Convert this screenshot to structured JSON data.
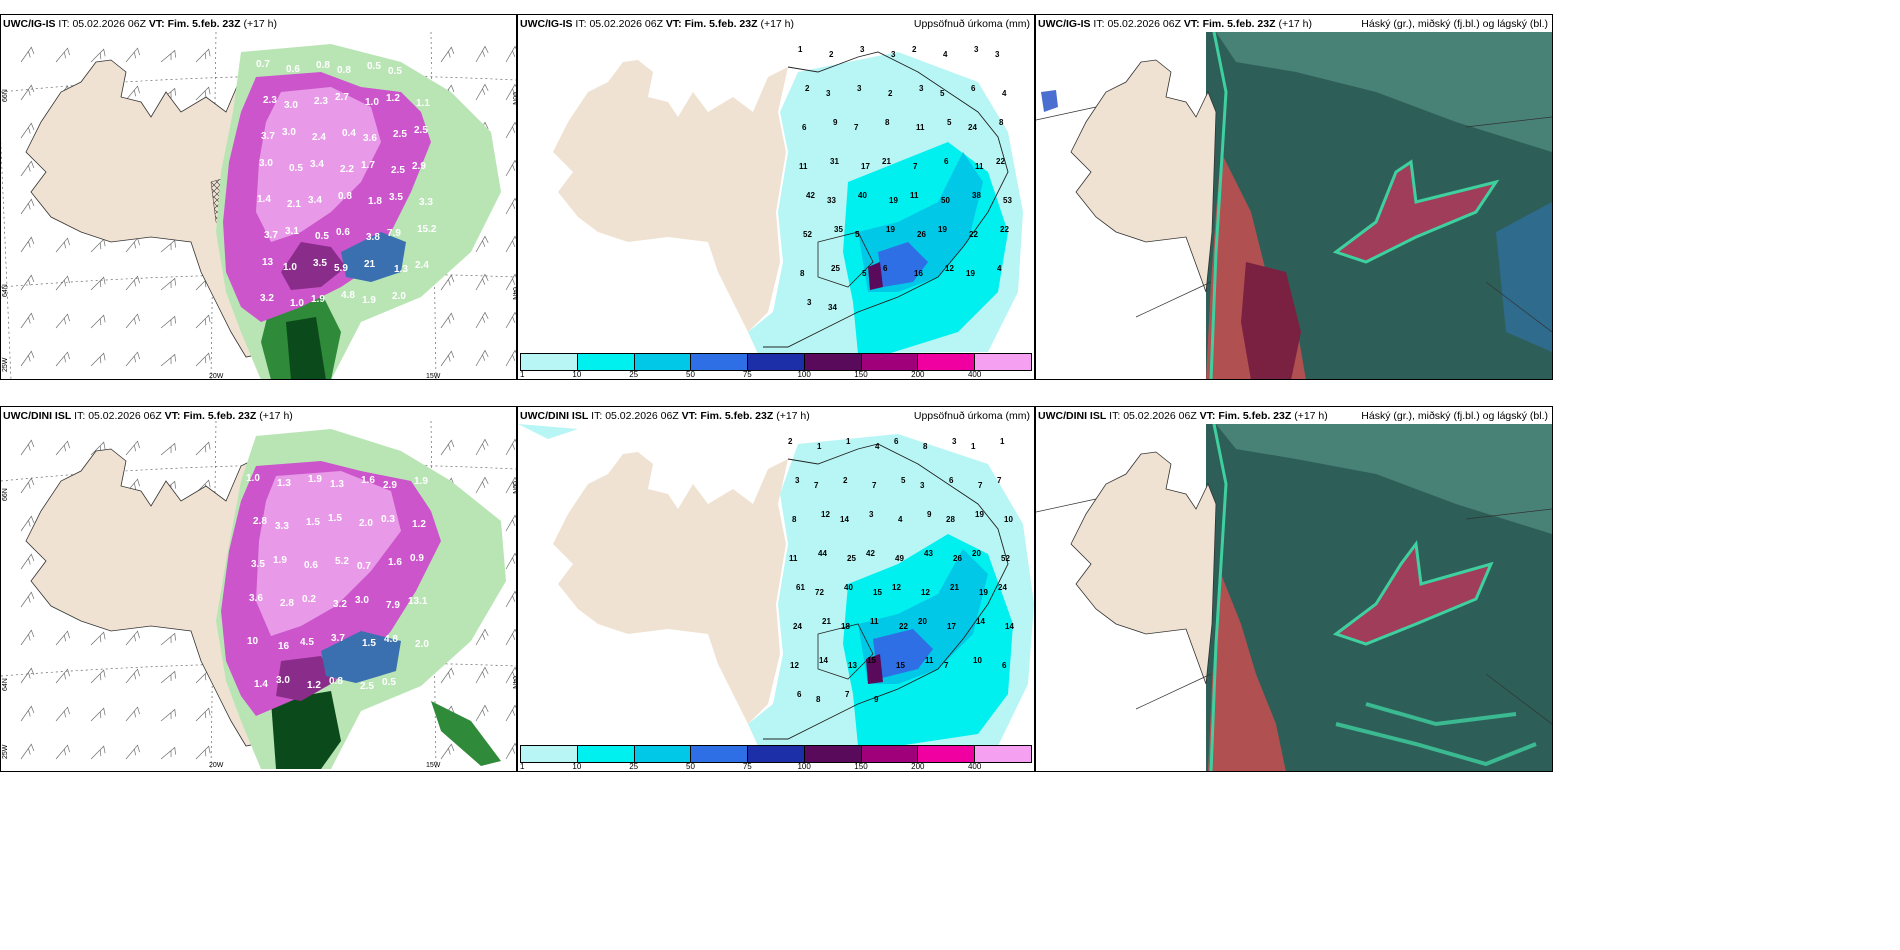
{
  "panels": {
    "p1": {
      "model": "UWC/IG-IS",
      "it_label": "IT:",
      "it_value": "05.02.2026 06Z",
      "vt_label": "VT:",
      "vt_value": "Fim. 5.feb. 23Z",
      "offset": "(+17 h)"
    },
    "p2": {
      "model": "UWC/IG-IS",
      "it_label": "IT:",
      "it_value": "05.02.2026 06Z",
      "vt_label": "VT:",
      "vt_value": "Fim. 5.feb. 23Z",
      "offset": "(+17 h)",
      "right_title": "Uppsöfnuð úrkoma (mm)"
    },
    "p3": {
      "model": "UWC/IG-IS",
      "it_label": "IT:",
      "it_value": "05.02.2026 06Z",
      "vt_label": "VT:",
      "vt_value": "Fim. 5.feb. 23Z",
      "offset": "(+17 h)",
      "right_title": "Háský (gr.), miðský (fj.bl.) og lágský (bl.)"
    },
    "p4": {
      "model": "UWC/DINI ISL",
      "it_label": "IT:",
      "it_value": "05.02.2026 06Z",
      "vt_label": "VT:",
      "vt_value": "Fim. 5.feb. 23Z",
      "offset": "(+17",
      "offset2": "h)"
    },
    "p5": {
      "model": "UWC/DINI ISL",
      "it_label": "IT:",
      "it_value": "05.02.2026 06Z",
      "vt_label": "VT:",
      "vt_value": "Fim. 5.feb. 23Z",
      "offset": "(+17 h)",
      "right_title": "Uppsöfnuð úrkoma (mm)"
    },
    "p6": {
      "model": "UWC/DINI ISL",
      "it_label": "IT:",
      "it_value": "05.02.2026 06Z",
      "vt_label": "VT:",
      "vt_value": "Fim. 5.feb. 23Z",
      "offset": "(+17 h)",
      "right_title": "Háský (gr.), miðský (fj.bl.) og lágský (bl.)"
    }
  },
  "axis_labels": {
    "lat66": "66N",
    "lat64": "64N",
    "lon20": "20W",
    "lon15": "15W",
    "lon25": "25W"
  },
  "legend": {
    "ticks": [
      "1",
      "10",
      "25",
      "50",
      "75",
      "100",
      "150",
      "200",
      "400"
    ],
    "colors": [
      "#b8f5f5",
      "#00f0f0",
      "#00c8e6",
      "#2e6fe6",
      "#1c2fa8",
      "#5a0a5a",
      "#a0007a",
      "#f000a0",
      "#f5a0f0"
    ]
  },
  "p1_values": [
    "0.7",
    "0.6",
    "0.8",
    "0.8",
    "0.5",
    "0.5",
    "0.4",
    "2.3",
    "3.0",
    "2.3",
    "2.7",
    "1.0",
    "1.2",
    "1.1",
    "3.7",
    "3.0",
    "2.4",
    "0.4",
    "3.6",
    "2.5",
    "2.5",
    "3.0",
    "0.5",
    "3.4",
    "2.2",
    "1.7",
    "2.5",
    "2.9",
    "1.4",
    "2.1",
    "3.4",
    "0.8",
    "1.8",
    "3.5",
    "3.3",
    "3.7",
    "3.1",
    "0.5",
    "0.6",
    "3.8",
    "7.9",
    "15.2",
    "13",
    "1.0",
    "3.5",
    "5.9",
    "21",
    "1.3",
    "2.4",
    "3.2",
    "1.0",
    "1.9",
    "4.8",
    "1.9",
    "2.0"
  ],
  "p4_values": [
    "1.0",
    "1.3",
    "1.9",
    "1.3",
    "1.6",
    "2.9",
    "1.9",
    "2.8",
    "3.3",
    "1.5",
    "1.5",
    "2.0",
    "0.3",
    "1.2",
    "3.5",
    "1.9",
    "0.6",
    "5.2",
    "0.7",
    "1.6",
    "0.9",
    "3.6",
    "2.8",
    "0.2",
    "3.2",
    "3.0",
    "7.9",
    "13.1",
    "10",
    "16",
    "4.5",
    "3.7",
    "1.5",
    "4.8",
    "2.0",
    "1.4",
    "3.0",
    "1.2",
    "0.8",
    "2.5",
    "0.5"
  ],
  "p2_values": [
    "1",
    "2",
    "3",
    "3",
    "2",
    "4",
    "3",
    "3",
    "2",
    "3",
    "3",
    "2",
    "3",
    "5",
    "6",
    "4",
    "6",
    "9",
    "7",
    "8",
    "11",
    "5",
    "24",
    "8",
    "11",
    "31",
    "17",
    "21",
    "7",
    "6",
    "11",
    "22",
    "42",
    "33",
    "40",
    "19",
    "11",
    "50",
    "38",
    "53",
    "52",
    "35",
    "5",
    "19",
    "26",
    "19",
    "22",
    "22",
    "8",
    "25",
    "5",
    "6",
    "16",
    "12",
    "19",
    "4",
    "3",
    "34"
  ],
  "p5_values": [
    "2",
    "1",
    "1",
    "4",
    "6",
    "8",
    "3",
    "1",
    "1",
    "3",
    "7",
    "2",
    "7",
    "5",
    "3",
    "6",
    "7",
    "7",
    "8",
    "12",
    "14",
    "3",
    "4",
    "9",
    "28",
    "19",
    "10",
    "11",
    "44",
    "25",
    "42",
    "49",
    "43",
    "26",
    "20",
    "52",
    "61",
    "72",
    "40",
    "15",
    "12",
    "12",
    "21",
    "19",
    "24",
    "24",
    "21",
    "18",
    "11",
    "22",
    "20",
    "17",
    "14",
    "14",
    "12",
    "14",
    "13",
    "15",
    "15",
    "11",
    "7",
    "10",
    "6",
    "6",
    "8",
    "7",
    "9"
  ]
}
